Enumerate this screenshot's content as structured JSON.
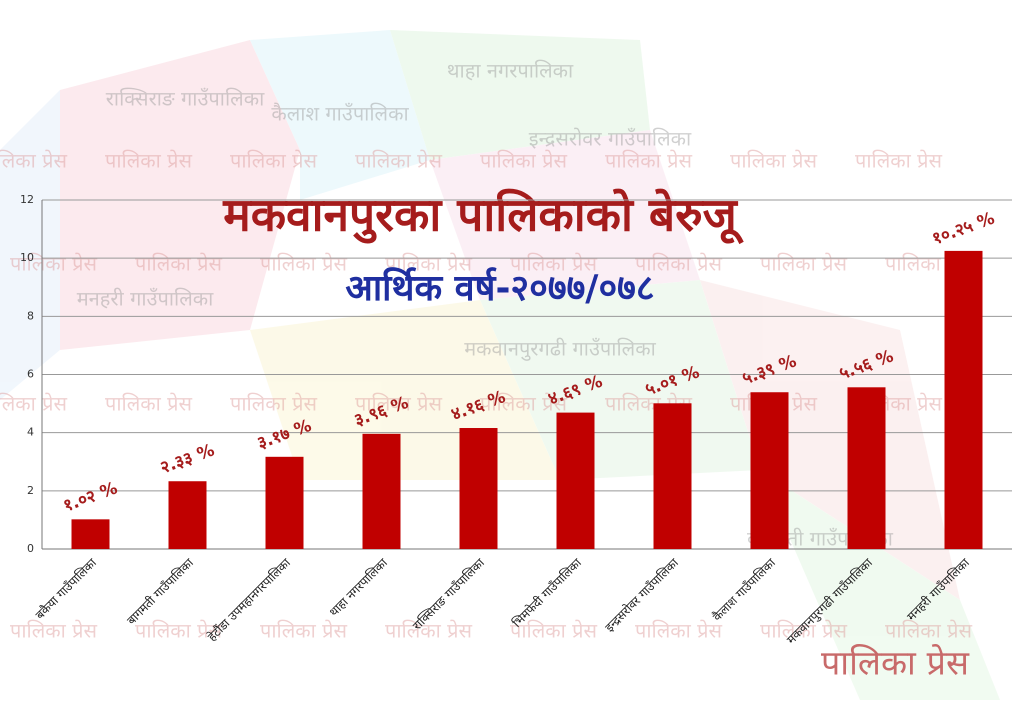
{
  "chart_data": {
    "type": "bar",
    "title": "मकवानपुरका पालिकाको  बेरुजू",
    "subtitle": "आर्थिक वर्ष-२०७७/०७८",
    "categories": [
      "बकैया गाउँपालिका",
      "बागमती गाउँपालिका",
      "हेटौंडा उपमहानगरपालिका",
      "थाहा नगरपालिका",
      "राक्सिराङ गाउँपालिका",
      "भिमफेदी गाउँपालिका",
      "इन्द्रसरोवर गाउँपालिका",
      "कैलाश गाउँपालिका",
      "मकवानपुरगढी गाउँपालिका",
      "मनहरी गाउँपालिका"
    ],
    "values": [
      1.02,
      2.33,
      3.17,
      3.96,
      4.16,
      4.69,
      5.01,
      5.39,
      5.56,
      10.25
    ],
    "value_labels": [
      "१.०२ %",
      "२.३३ %",
      "३.१७ %",
      "३.९६ %",
      "४.१६ %",
      "४.६९ %",
      "५.०१ %",
      "५.३९ %",
      "५.५६ %",
      "१०.२५ %"
    ],
    "color": "#c00000",
    "ylim": [
      0,
      12
    ],
    "yticks": [
      0,
      2,
      4,
      6,
      8,
      10,
      12
    ],
    "grid": true,
    "watermark": "पालिका प्रेस",
    "map_labels": [
      "राक्सिराङ गाउँपालिका",
      "कैलाश गाउँपालिका",
      "थाहा नगरपालिका",
      "इन्द्रसरोवर गाउँपालिका",
      "मनहरी गाउँपालिका",
      "मकवानपुरगढी गाउँपालिका",
      "बागमती गाउँपालिका"
    ]
  }
}
